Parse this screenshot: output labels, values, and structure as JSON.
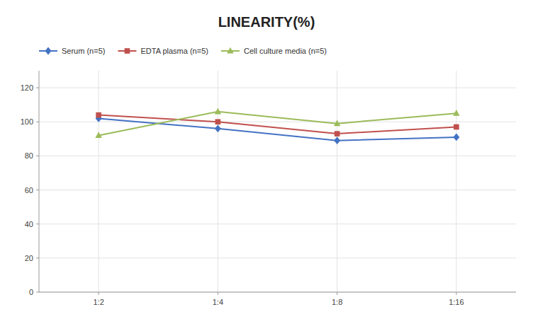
{
  "chart_data": {
    "type": "line",
    "title": "LINEARITY(%)",
    "categories": [
      "1:2",
      "1:4",
      "1:8",
      "1:16"
    ],
    "series": [
      {
        "name": "Serum (n=5)",
        "color": "#4472C4",
        "marker": "diamond",
        "values": [
          102,
          96,
          89,
          91
        ]
      },
      {
        "name": "EDTA plasma (n=5)",
        "color": "#C0504D",
        "marker": "square",
        "values": [
          104,
          100,
          93,
          97
        ]
      },
      {
        "name": "Cell culture media (n=5)",
        "color": "#9BBB59",
        "marker": "triangle",
        "values": [
          92,
          106,
          99,
          105
        ]
      }
    ],
    "ylim": [
      0,
      130
    ],
    "yticks": [
      0,
      20,
      40,
      60,
      80,
      100,
      120
    ],
    "grid": true,
    "legend": "top-left"
  }
}
